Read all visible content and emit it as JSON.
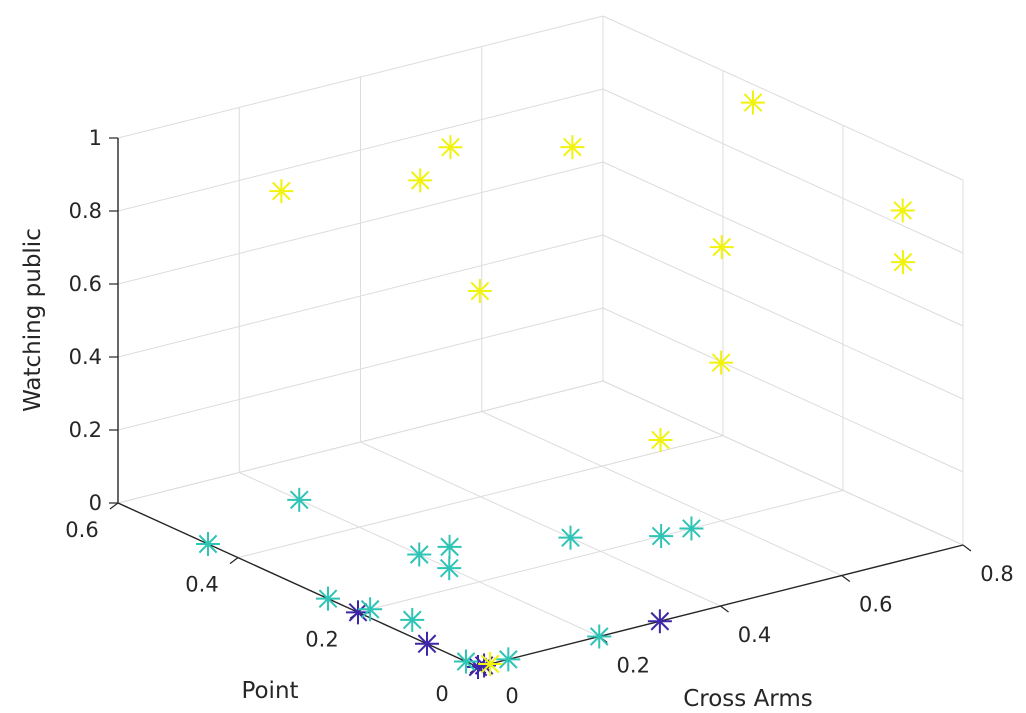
{
  "chart_data": {
    "type": "scatter3d",
    "title": "",
    "xlabel": "Cross Arms",
    "ylabel": "Point",
    "zlabel": "Watching public",
    "xlim": [
      0,
      0.8
    ],
    "ylim": [
      0,
      0.6
    ],
    "zlim": [
      0,
      1
    ],
    "xticks": [
      "0",
      "0.2",
      "0.4",
      "0.6",
      "0.8"
    ],
    "yticks": [
      "0",
      "0.2",
      "0.4",
      "0.6"
    ],
    "zticks": [
      "0",
      "0.2",
      "0.4",
      "0.6",
      "0.8",
      "1"
    ],
    "grid": true,
    "marker": "asterisk",
    "colors": {
      "purple": "#3d26a8",
      "cyan": "#2ec4b6",
      "yellow": "#f2f20f"
    },
    "series": [
      {
        "color": "#3d26a8",
        "points": [
          [
            0.0,
            0.0,
            0.0
          ],
          [
            0.01,
            0.0,
            0.0
          ],
          [
            0.0,
            0.2,
            0.0
          ],
          [
            0.0,
            0.085,
            0.0
          ],
          [
            0.3,
            0.0,
            0.0
          ]
        ]
      },
      {
        "color": "#2ec4b6",
        "points": [
          [
            0.0,
            0.02,
            0.0
          ],
          [
            0.05,
            0.0,
            0.0
          ],
          [
            0.2,
            0.0,
            0.0
          ],
          [
            0.0,
            0.45,
            0.0
          ],
          [
            0.0,
            0.25,
            0.0
          ],
          [
            0.02,
            0.2,
            0.0
          ],
          [
            0.04,
            0.15,
            0.0
          ],
          [
            0.2,
            0.5,
            0.0
          ],
          [
            0.2,
            0.3,
            0.0
          ],
          [
            0.25,
            0.3,
            0.0
          ],
          [
            0.2,
            0.25,
            0.0
          ],
          [
            0.4,
            0.25,
            0.0
          ],
          [
            0.5,
            0.2,
            0.0
          ],
          [
            0.55,
            0.2,
            0.0
          ]
        ]
      },
      {
        "color": "#f2f20f",
        "points": [
          [
            0.02,
            0.0,
            0.0
          ],
          [
            0.22,
            0.55,
            0.8
          ],
          [
            0.35,
            0.45,
            0.85
          ],
          [
            0.3,
            0.3,
            0.68
          ],
          [
            0.4,
            0.1,
            0.38
          ],
          [
            0.4,
            0.45,
            0.92
          ],
          [
            0.7,
            0.55,
            0.72
          ],
          [
            0.5,
            0.1,
            0.55
          ],
          [
            0.6,
            0.2,
            0.75
          ],
          [
            0.75,
            0.05,
            0.9
          ],
          [
            0.8,
            0.35,
            0.95
          ],
          [
            0.8,
            0.1,
            0.7
          ]
        ]
      }
    ]
  }
}
